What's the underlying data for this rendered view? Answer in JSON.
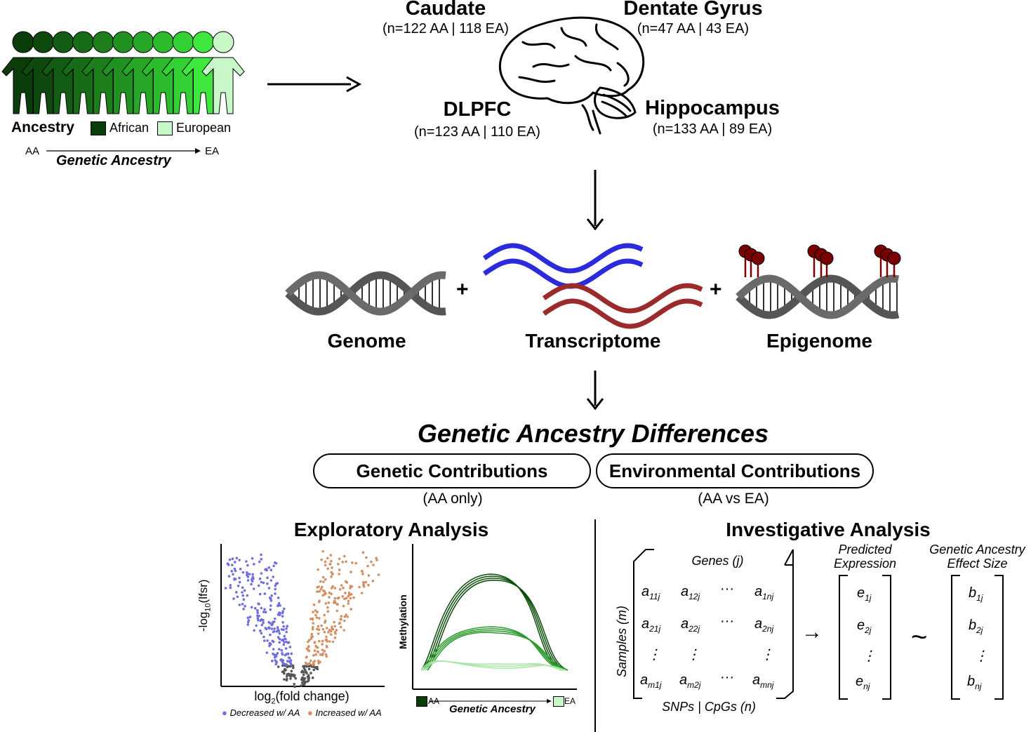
{
  "ancestry": {
    "title": "Ancestry",
    "legend": [
      {
        "label": "African",
        "color": "#0b3d0b"
      },
      {
        "label": "European",
        "color": "#c8f7c8"
      }
    ],
    "axis_start": "AA",
    "axis_end": "EA",
    "axis_label": "Genetic Ancestry",
    "people_colors": [
      "#0b3d0b",
      "#0e4a0e",
      "#135c13",
      "#176c17",
      "#1c7f1c",
      "#219221",
      "#27a727",
      "#2cbb2c",
      "#33d133",
      "#3ee83e",
      "#c8f7c8"
    ]
  },
  "regions": {
    "caudate": {
      "name": "Caudate",
      "n": "(n=122 AA | 118 EA)"
    },
    "dentate": {
      "name": "Dentate Gyrus",
      "n": "(n=47 AA | 43 EA)"
    },
    "dlpfc": {
      "name": "DLPFC",
      "n": "(n=123 AA | 110 EA)"
    },
    "hippo": {
      "name": "Hippocampus",
      "n": "(n=133 AA | 89 EA)"
    }
  },
  "omics": {
    "genome": "Genome",
    "transcriptome": "Transcriptome",
    "epigenome": "Epigenome",
    "plus": "+",
    "colors": {
      "dna": "#555555",
      "rna_blue": "#2b2bdd",
      "rna_red": "#9b2b2b",
      "methyl": "#7a0000"
    }
  },
  "differences": {
    "title": "Genetic Ancestry Differences",
    "genetic": "Genetic Contributions",
    "genetic_sub": "(AA only)",
    "environmental": "Environmental Contributions",
    "environmental_sub": "(AA vs EA)"
  },
  "exploratory": {
    "title": "Exploratory Analysis",
    "volcano_ylabel_pre": "-log",
    "volcano_ylabel_sub": "10",
    "volcano_ylabel_post": "(lfsr)",
    "volcano_xlabel_pre": "log",
    "volcano_xlabel_sub": "2",
    "volcano_xlabel_post": "(fold change)",
    "legend_decreased": "Decreased w/ AA",
    "legend_increased": "Increased w/ AA",
    "colors": {
      "decreased": "#6f6fe0",
      "increased": "#d48f63",
      "ns": "#555555"
    },
    "methyl_ylabel": "Methylation",
    "methyl_axis_start": "AA",
    "methyl_axis_end": "EA",
    "methyl_axis_label": "Genetic Ancestry"
  },
  "investigative": {
    "title": "Investigative Analysis",
    "genes_label": "Genes (j)",
    "samples_label": "Samples (m)",
    "snps_label": "SNPs | CpGs (n)",
    "predicted_1": "Predicted",
    "predicted_2": "Expression",
    "effect_1": "Genetic Ancestry",
    "effect_2": "Effect Size",
    "arrow": "→",
    "tilde": "~",
    "dots_h": "···",
    "dots_v": "⋮",
    "a": "a",
    "e": "e",
    "b": "b",
    "sub_11j": "11j",
    "sub_12j": "12j",
    "sub_1nj": "1nj",
    "sub_21j": "21j",
    "sub_22j": "22j",
    "sub_2nj": "2nj",
    "sub_m1j": "m1j",
    "sub_m2j": "m2j",
    "sub_mnj": "mnj",
    "sub_1j": "1j",
    "sub_2j": "2j",
    "sub_nj": "nj"
  }
}
